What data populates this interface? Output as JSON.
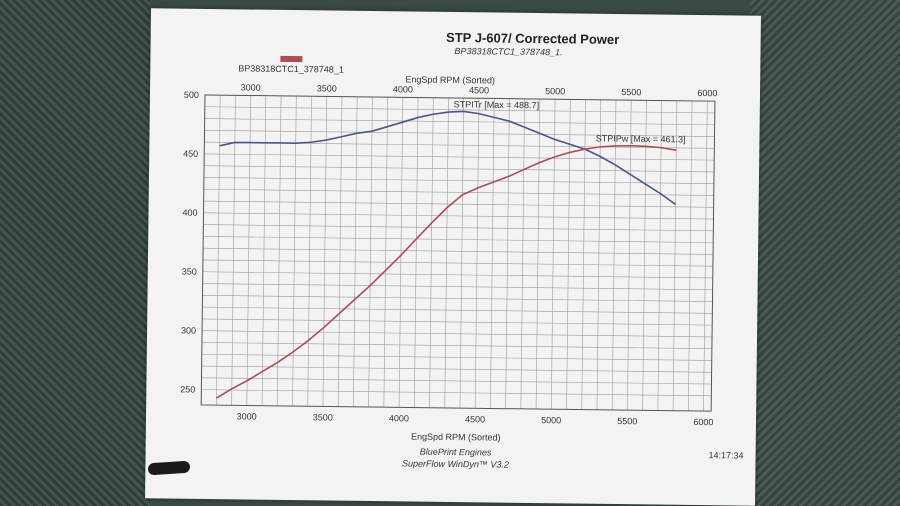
{
  "header": {
    "title": "STP J-607/ Corrected Power",
    "subtitle": "BP38318CTC1_378748_1.",
    "legend_label": "BP38318CTC1_378748_1",
    "legend_color": "#b04a55"
  },
  "footer": {
    "line1": "BluePrint Engines",
    "line2": "SuperFlow WinDyn™ V3.2",
    "time": "14:17:34"
  },
  "chart_data": {
    "type": "line",
    "xlabel_top": "EngSpd RPM    (Sorted)",
    "xlabel_bottom": "EngSpd RPM    (Sorted)",
    "x_ticks": [
      3000,
      3500,
      4000,
      4500,
      5000,
      5500,
      6000
    ],
    "y_ticks": [
      250,
      300,
      350,
      400,
      450,
      500
    ],
    "xlim": [
      2700,
      6050
    ],
    "ylim": [
      237,
      500
    ],
    "grid": true,
    "series": [
      {
        "name": "STPITr [Max = 488.7]",
        "color": "#4a5590",
        "x": [
          2800,
          2900,
          3000,
          3100,
          3200,
          3300,
          3400,
          3500,
          3600,
          3700,
          3800,
          3900,
          4000,
          4100,
          4200,
          4300,
          4400,
          4500,
          4600,
          4700,
          4800,
          4900,
          5000,
          5100,
          5200,
          5300,
          5400,
          5500,
          5600,
          5700,
          5800
        ],
        "y": [
          457,
          460,
          460,
          460,
          460,
          460,
          461,
          463,
          466,
          469,
          471,
          475,
          479,
          483,
          486,
          488,
          488.7,
          487,
          484,
          481,
          476,
          471,
          466,
          462,
          458,
          452,
          445,
          437,
          429,
          421,
          412
        ]
      },
      {
        "name": "STPIPw [Max = 461.3]",
        "color": "#b04a55",
        "x": [
          2800,
          2900,
          3000,
          3100,
          3200,
          3300,
          3400,
          3500,
          3600,
          3700,
          3800,
          3900,
          4000,
          4100,
          4200,
          4300,
          4400,
          4500,
          4600,
          4700,
          4800,
          4900,
          5000,
          5100,
          5200,
          5300,
          5400,
          5500,
          5600,
          5700,
          5800
        ],
        "y": [
          243,
          251,
          258,
          266,
          274,
          283,
          293,
          304,
          316,
          328,
          340,
          353,
          366,
          380,
          394,
          407,
          418,
          424,
          429,
          434,
          440,
          446,
          451,
          455,
          458,
          460,
          461,
          461.3,
          461,
          460,
          458
        ]
      }
    ]
  }
}
